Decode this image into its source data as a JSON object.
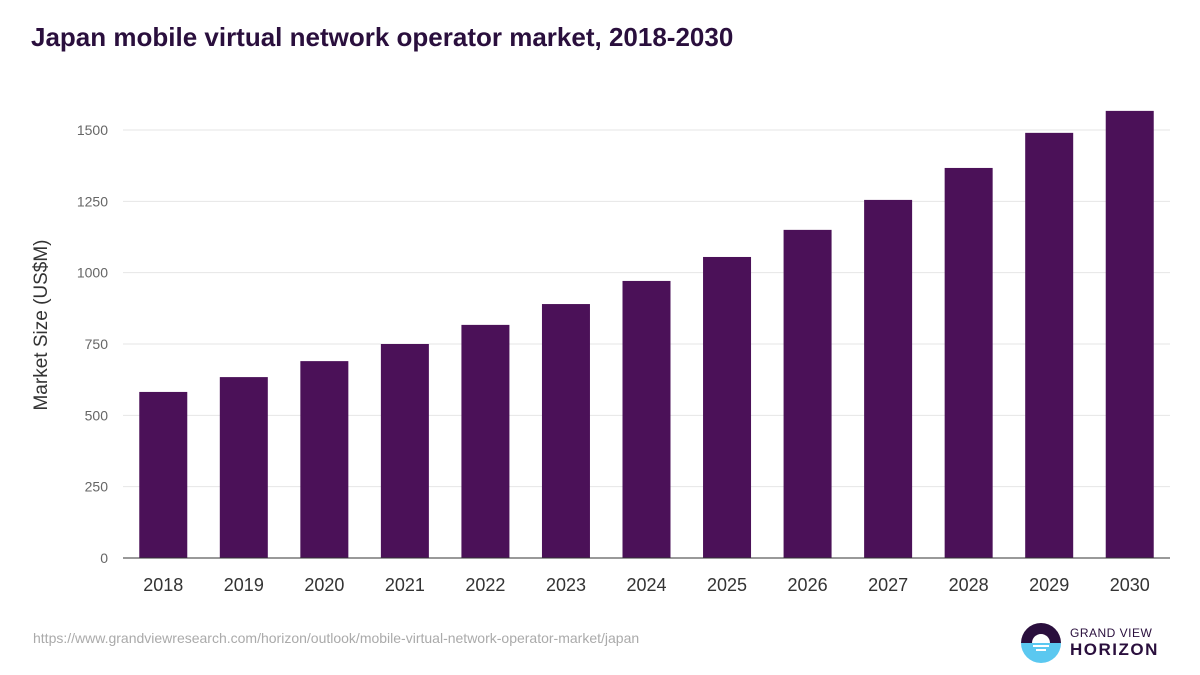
{
  "chart_data": {
    "type": "bar",
    "title": "Japan mobile virtual network operator market, 2018-2030",
    "xlabel": "",
    "ylabel": "Market Size (US$M)",
    "categories": [
      "2018",
      "2019",
      "2020",
      "2021",
      "2022",
      "2023",
      "2024",
      "2025",
      "2026",
      "2027",
      "2028",
      "2029",
      "2030"
    ],
    "values": [
      582,
      634,
      690,
      750,
      817,
      890,
      971,
      1055,
      1150,
      1255,
      1367,
      1490,
      1567
    ],
    "ylim": [
      0,
      1600
    ],
    "yticks": [
      0,
      250,
      500,
      750,
      1000,
      1250,
      1500
    ],
    "grid": true,
    "bar_color": "#4b1158"
  },
  "source": "https://www.grandviewresearch.com/horizon/outlook/mobile-virtual-network-operator-market/japan",
  "logo": {
    "line1": "GRAND VIEW",
    "line2": "HORIZON"
  }
}
